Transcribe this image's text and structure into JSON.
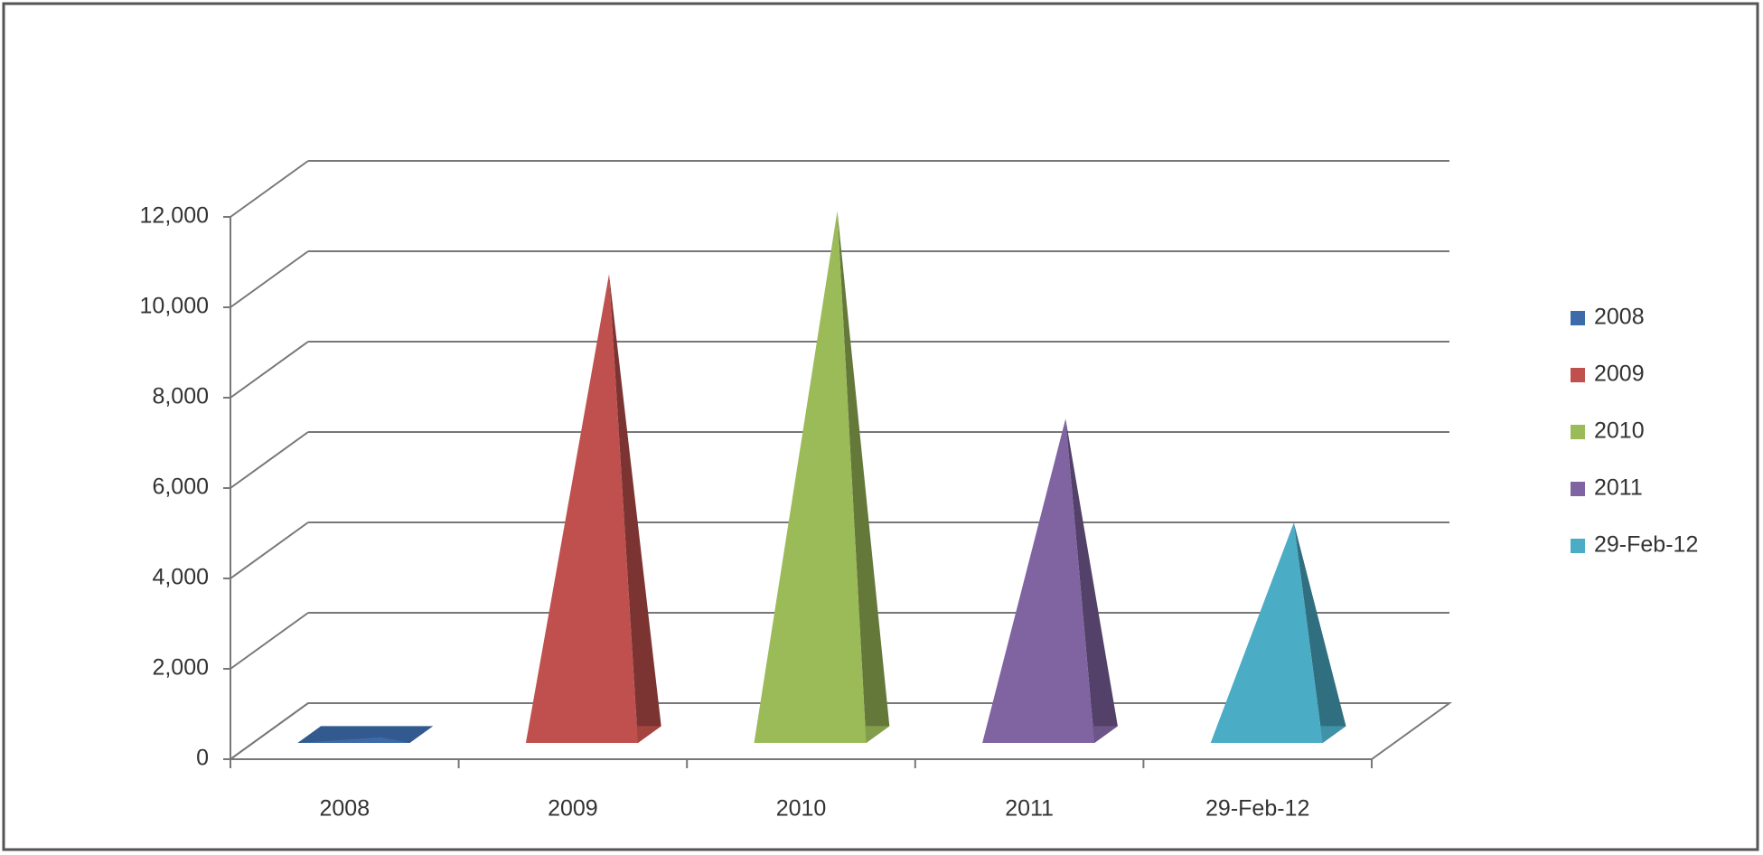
{
  "chart_data": {
    "type": "pyramid3d",
    "categories": [
      "2008",
      "2009",
      "2010",
      "2011",
      "29-Feb-12"
    ],
    "series": [
      {
        "name": "2008",
        "color": "#3d6aa8",
        "values": [
          50,
          null,
          null,
          null,
          null
        ]
      },
      {
        "name": "2009",
        "color": "#c0504d",
        "values": [
          null,
          10300,
          null,
          null,
          null
        ]
      },
      {
        "name": "2010",
        "color": "#9bbb59",
        "values": [
          null,
          null,
          11700,
          null,
          null
        ]
      },
      {
        "name": "2011",
        "color": "#8064a2",
        "values": [
          null,
          null,
          null,
          7100,
          null
        ]
      },
      {
        "name": "29-Feb-12",
        "color": "#4bacc6",
        "values": [
          null,
          null,
          null,
          null,
          4800
        ]
      }
    ],
    "ylim": [
      0,
      12000
    ],
    "yticks": [
      0,
      {
        "value": 2000,
        "label": "2,000"
      },
      {
        "value": 4000,
        "label": "4,000"
      },
      {
        "value": 6000,
        "label": "6,000"
      },
      {
        "value": 8000,
        "label": "8,000"
      },
      {
        "value": 10000,
        "label": "10,000"
      },
      {
        "value": 12000,
        "label": "12,000"
      }
    ],
    "grid": true,
    "legend": "right"
  }
}
